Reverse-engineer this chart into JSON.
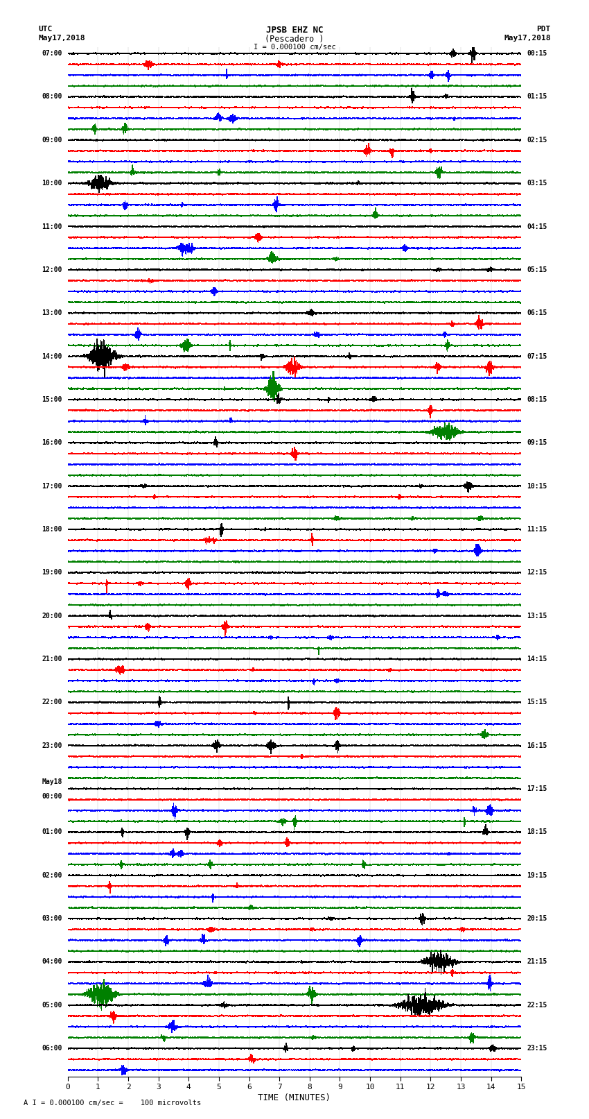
{
  "title_line1": "JPSB EHZ NC",
  "title_line2": "(Pescadero )",
  "scale_label": "I = 0.000100 cm/sec",
  "utc_label": "UTC\nMay17,2018",
  "pdt_label": "PDT\nMay17,2018",
  "xlabel": "TIME (MINUTES)",
  "footnote": "A I = 0.000100 cm/sec =    100 microvolts",
  "left_times": [
    "07:00",
    "",
    "",
    "",
    "08:00",
    "",
    "",
    "",
    "09:00",
    "",
    "",
    "",
    "10:00",
    "",
    "",
    "",
    "11:00",
    "",
    "",
    "",
    "12:00",
    "",
    "",
    "",
    "13:00",
    "",
    "",
    "",
    "14:00",
    "",
    "",
    "",
    "15:00",
    "",
    "",
    "",
    "16:00",
    "",
    "",
    "",
    "17:00",
    "",
    "",
    "",
    "18:00",
    "",
    "",
    "",
    "19:00",
    "",
    "",
    "",
    "20:00",
    "",
    "",
    "",
    "21:00",
    "",
    "",
    "",
    "22:00",
    "",
    "",
    "",
    "23:00",
    "",
    "",
    "",
    "May18\n00:00",
    "",
    "",
    "",
    "01:00",
    "",
    "",
    "",
    "02:00",
    "",
    "",
    "",
    "03:00",
    "",
    "",
    "",
    "04:00",
    "",
    "",
    "",
    "05:00",
    "",
    "",
    "",
    "06:00",
    "",
    ""
  ],
  "right_times": [
    "00:15",
    "",
    "",
    "",
    "01:15",
    "",
    "",
    "",
    "02:15",
    "",
    "",
    "",
    "03:15",
    "",
    "",
    "",
    "04:15",
    "",
    "",
    "",
    "05:15",
    "",
    "",
    "",
    "06:15",
    "",
    "",
    "",
    "07:15",
    "",
    "",
    "",
    "08:15",
    "",
    "",
    "",
    "09:15",
    "",
    "",
    "",
    "10:15",
    "",
    "",
    "",
    "11:15",
    "",
    "",
    "",
    "12:15",
    "",
    "",
    "",
    "13:15",
    "",
    "",
    "",
    "14:15",
    "",
    "",
    "",
    "15:15",
    "",
    "",
    "",
    "16:15",
    "",
    "",
    "",
    "17:15",
    "",
    "",
    "",
    "18:15",
    "",
    "",
    "",
    "19:15",
    "",
    "",
    "",
    "20:15",
    "",
    "",
    "",
    "21:15",
    "",
    "",
    "",
    "22:15",
    "",
    "",
    "",
    "23:15",
    "",
    ""
  ],
  "colors": [
    "black",
    "red",
    "blue",
    "green"
  ],
  "num_traces": 95,
  "background_color": "white",
  "line_width": 0.5,
  "x_ticks": [
    0,
    1,
    2,
    3,
    4,
    5,
    6,
    7,
    8,
    9,
    10,
    11,
    12,
    13,
    14,
    15
  ],
  "xlim": [
    0,
    15
  ],
  "seed": 12345
}
